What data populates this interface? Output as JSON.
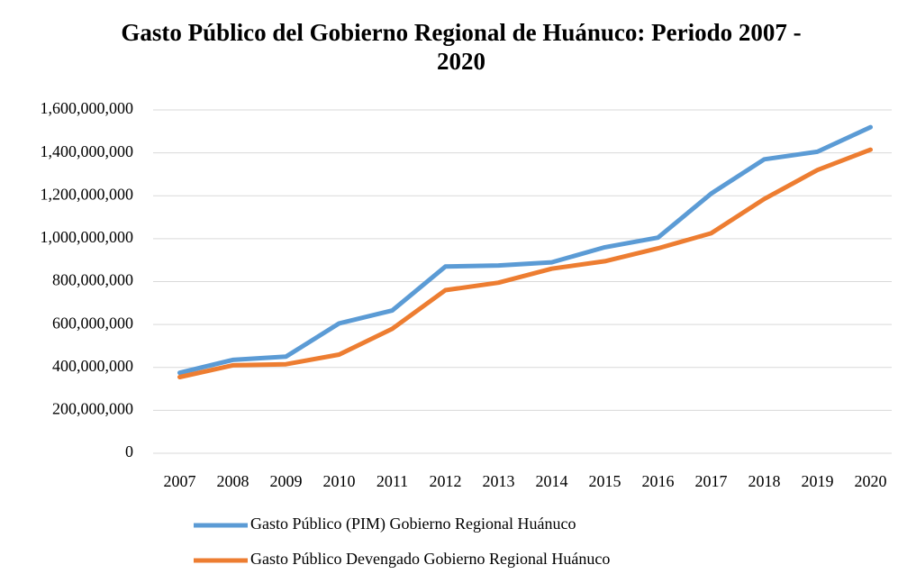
{
  "chart_data": {
    "type": "line",
    "title": "Gasto Público del Gobierno Regional de Huánuco: Periodo 2007 - 2020",
    "categories": [
      "2007",
      "2008",
      "2009",
      "2010",
      "2011",
      "2012",
      "2013",
      "2014",
      "2015",
      "2016",
      "2017",
      "2018",
      "2019",
      "2020"
    ],
    "series": [
      {
        "name": "Gasto Público (PIM) Gobierno Regional Huánuco",
        "color": "#5b9bd5",
        "values": [
          375000000,
          435000000,
          450000000,
          605000000,
          665000000,
          870000000,
          875000000,
          890000000,
          960000000,
          1005000000,
          1210000000,
          1370000000,
          1405000000,
          1520000000
        ]
      },
      {
        "name": "Gasto Público Devengado Gobierno Regional Huánuco",
        "color": "#ed7d31",
        "values": [
          355000000,
          410000000,
          415000000,
          460000000,
          580000000,
          760000000,
          795000000,
          860000000,
          895000000,
          955000000,
          1025000000,
          1185000000,
          1320000000,
          1415000000
        ]
      }
    ],
    "ylim": [
      0,
      1600000000
    ],
    "yticks": [
      0,
      {
        "value": 200000000,
        "label": "200,000,000"
      },
      {
        "value": 400000000,
        "label": "400,000,000"
      },
      {
        "value": 600000000,
        "label": "600,000,000"
      },
      {
        "value": 800000000,
        "label": "800,000,000"
      },
      {
        "value": 1000000000,
        "label": "1,000,000,000"
      },
      {
        "value": 1200000000,
        "label": "1,200,000,000"
      },
      {
        "value": 1400000000,
        "label": "1,400,000,000"
      },
      {
        "value": 1600000000,
        "label": "1,600,000,000"
      }
    ],
    "grid": true,
    "legend": "bottom"
  }
}
